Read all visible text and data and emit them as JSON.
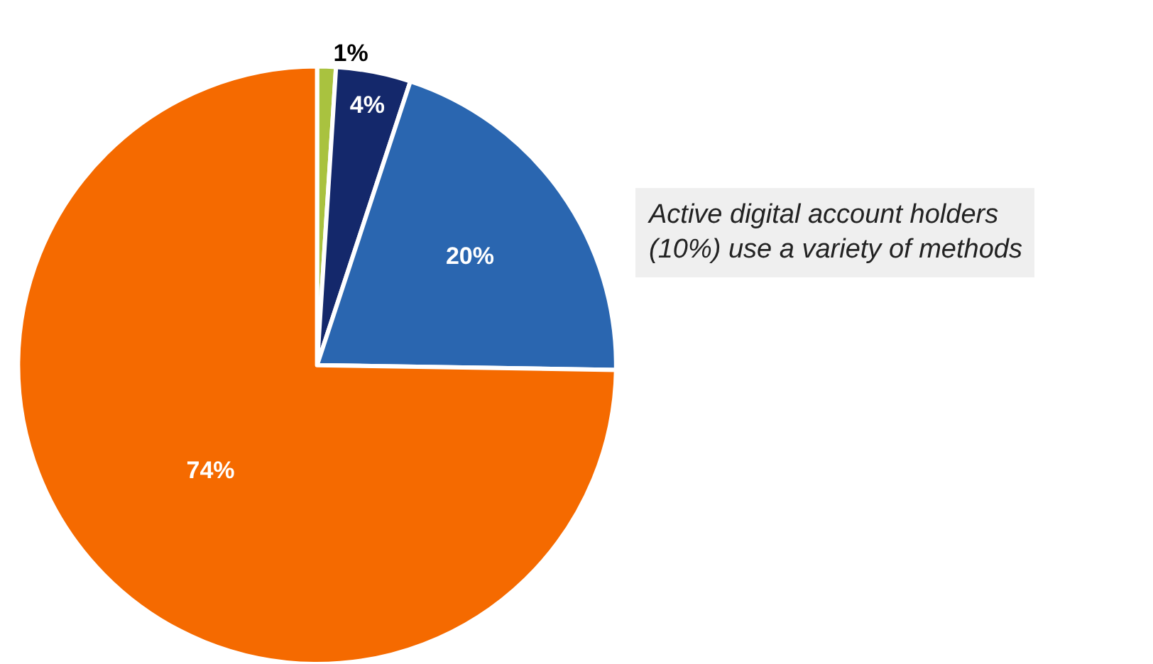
{
  "chart_data": {
    "type": "pie",
    "categories": [
      null,
      null,
      null,
      null
    ],
    "values": [
      1,
      4,
      20,
      74
    ],
    "colors": [
      "#a9c23f",
      "#14286b",
      "#2a66b0",
      "#f56a00"
    ],
    "value_labels": [
      "1%",
      "4%",
      "20%",
      "74%"
    ],
    "annotations": [
      "Active digital account holders (10%) use a variety of methods"
    ]
  }
}
